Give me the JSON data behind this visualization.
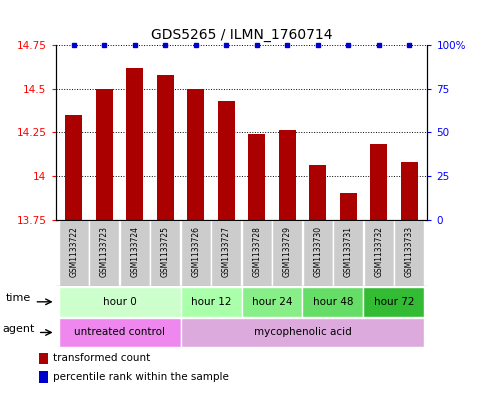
{
  "title": "GDS5265 / ILMN_1760714",
  "samples": [
    "GSM1133722",
    "GSM1133723",
    "GSM1133724",
    "GSM1133725",
    "GSM1133726",
    "GSM1133727",
    "GSM1133728",
    "GSM1133729",
    "GSM1133730",
    "GSM1133731",
    "GSM1133732",
    "GSM1133733"
  ],
  "bar_values": [
    14.35,
    14.5,
    14.62,
    14.58,
    14.5,
    14.43,
    14.24,
    14.26,
    14.06,
    13.9,
    14.18,
    14.08
  ],
  "bar_color": "#aa0000",
  "dot_color": "#0000cc",
  "ylim_left": [
    13.75,
    14.75
  ],
  "ylim_right": [
    0,
    100
  ],
  "yticks_left": [
    13.75,
    14.0,
    14.25,
    14.5,
    14.75
  ],
  "yticks_right": [
    0,
    25,
    50,
    75,
    100
  ],
  "ytick_labels_left": [
    "13.75",
    "14",
    "14.25",
    "14.5",
    "14.75"
  ],
  "ytick_labels_right": [
    "0",
    "25",
    "50",
    "75",
    "100%"
  ],
  "time_groups": [
    {
      "label": "hour 0",
      "indices": [
        0,
        1,
        2,
        3
      ],
      "color": "#ccffcc"
    },
    {
      "label": "hour 12",
      "indices": [
        4,
        5
      ],
      "color": "#aaffaa"
    },
    {
      "label": "hour 24",
      "indices": [
        6,
        7
      ],
      "color": "#88ee88"
    },
    {
      "label": "hour 48",
      "indices": [
        8,
        9
      ],
      "color": "#66dd66"
    },
    {
      "label": "hour 72",
      "indices": [
        10,
        11
      ],
      "color": "#33bb33"
    }
  ],
  "agent_groups": [
    {
      "label": "untreated control",
      "indices": [
        0,
        1,
        2,
        3
      ],
      "color": "#ee88ee"
    },
    {
      "label": "mycophenolic acid",
      "indices": [
        4,
        5,
        6,
        7,
        8,
        9,
        10,
        11
      ],
      "color": "#ddaadd"
    }
  ],
  "legend_bar_label": "transformed count",
  "legend_dot_label": "percentile rank within the sample",
  "sample_box_color": "#cccccc"
}
